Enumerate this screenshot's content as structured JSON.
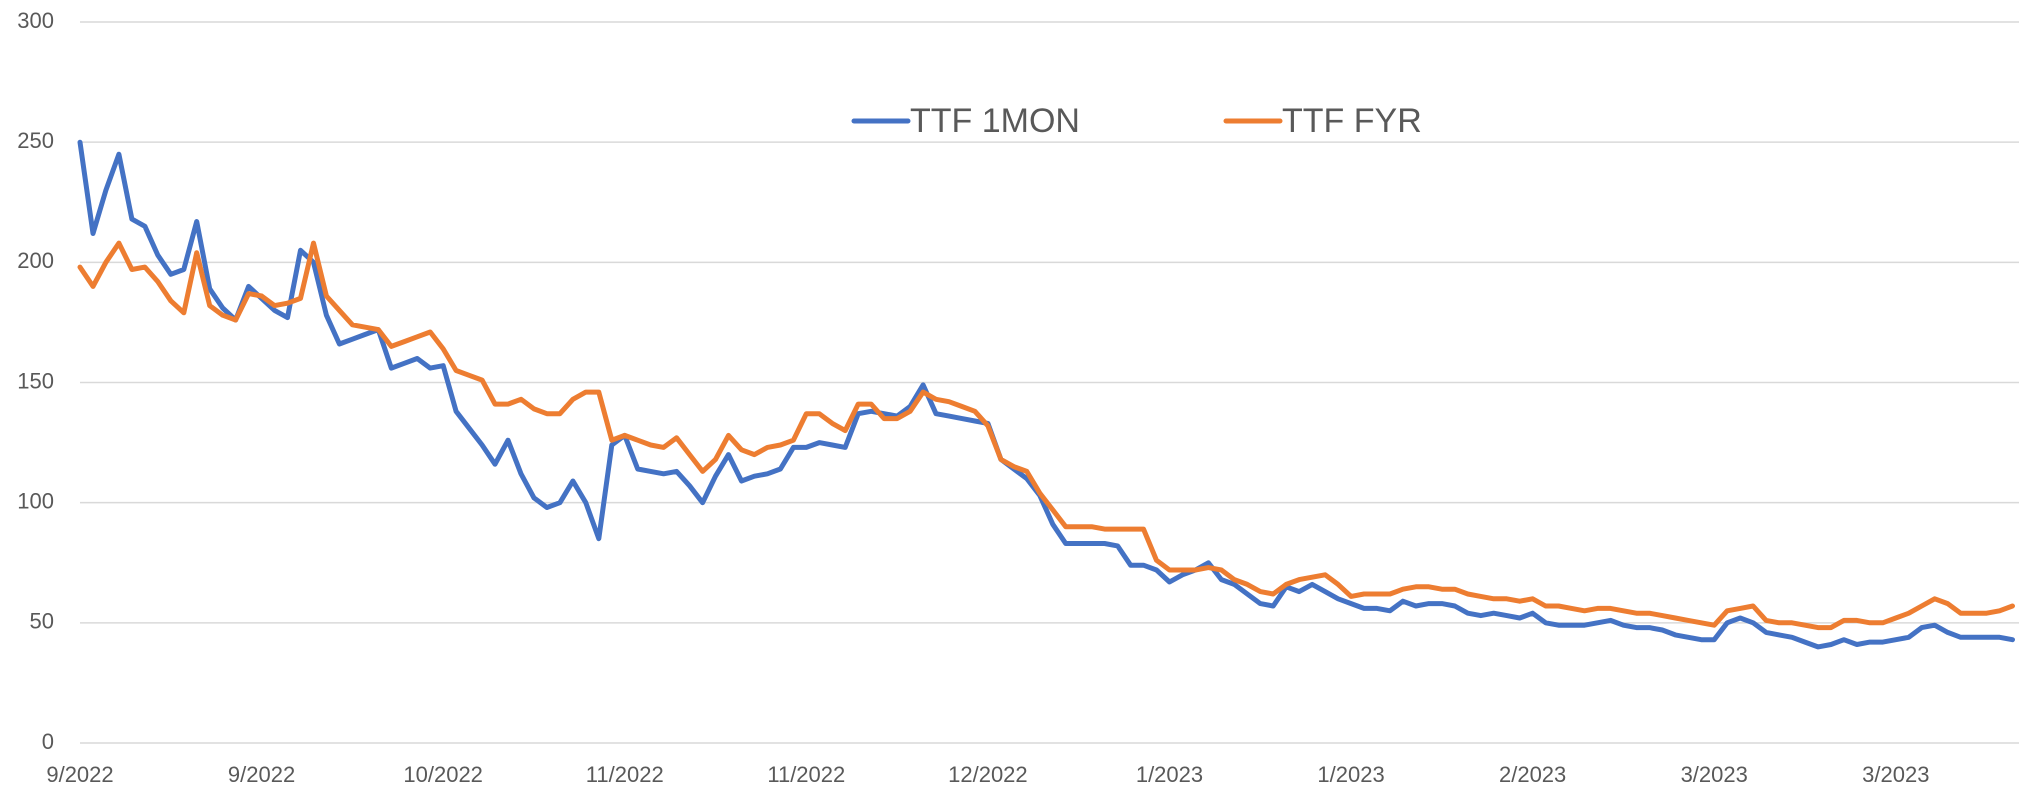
{
  "chart_data": {
    "type": "line",
    "categories": [
      "9/2022",
      null,
      null,
      null,
      null,
      null,
      null,
      null,
      null,
      null,
      null,
      null,
      null,
      null,
      "9/2022",
      null,
      null,
      null,
      null,
      null,
      null,
      null,
      null,
      null,
      null,
      null,
      null,
      null,
      "10/2022",
      null,
      null,
      null,
      null,
      null,
      null,
      null,
      null,
      null,
      null,
      null,
      null,
      null,
      "11/2022",
      null,
      null,
      null,
      null,
      null,
      null,
      null,
      null,
      null,
      null,
      null,
      null,
      null,
      "11/2022",
      null,
      null,
      null,
      null,
      null,
      null,
      null,
      null,
      null,
      null,
      null,
      null,
      null,
      "12/2022",
      null,
      null,
      null,
      null,
      null,
      null,
      null,
      null,
      null,
      null,
      null,
      null,
      null,
      "1/2023",
      null,
      null,
      null,
      null,
      null,
      null,
      null,
      null,
      null,
      null,
      null,
      null,
      null,
      "1/2023",
      null,
      null,
      null,
      null,
      null,
      null,
      null,
      null,
      null,
      null,
      null,
      null,
      null,
      "2/2023",
      null,
      null,
      null,
      null,
      null,
      null,
      null,
      null,
      null,
      null,
      null,
      null,
      null,
      "3/2023",
      null,
      null,
      null,
      null,
      null,
      null,
      null,
      null,
      null,
      null,
      null,
      null,
      null,
      "3/2023",
      null,
      null,
      null,
      null,
      null,
      null,
      null,
      null,
      null
    ],
    "series": [
      {
        "name": "TTF 1MON",
        "color": "#4472c4",
        "values": [
          250,
          212,
          230,
          245,
          218,
          215,
          203,
          195,
          197,
          217,
          189,
          181,
          176,
          190,
          185,
          180,
          177,
          205,
          200,
          178,
          166,
          168,
          170,
          172,
          156,
          158,
          160,
          156,
          157,
          138,
          131,
          124,
          116,
          126,
          112,
          102,
          98,
          100,
          109,
          100,
          85,
          124,
          128,
          114,
          113,
          112,
          113,
          107,
          100,
          111,
          120,
          109,
          111,
          112,
          114,
          123,
          123,
          125,
          124,
          123,
          137,
          138,
          137,
          136,
          140,
          149,
          137,
          136,
          135,
          134,
          133,
          118,
          114,
          110,
          103,
          91,
          83,
          83,
          83,
          83,
          82,
          74,
          74,
          72,
          67,
          70,
          72,
          75,
          68,
          66,
          62,
          58,
          57,
          65,
          63,
          66,
          63,
          60,
          58,
          56,
          56,
          55,
          59,
          57,
          58,
          58,
          57,
          54,
          53,
          54,
          53,
          52,
          54,
          50,
          49,
          49,
          49,
          50,
          51,
          49,
          48,
          48,
          47,
          45,
          44,
          43,
          43,
          50,
          52,
          50,
          46,
          45,
          44,
          42,
          40,
          41,
          43,
          41,
          42,
          42,
          43,
          44,
          48,
          49,
          46,
          44,
          44,
          44,
          44,
          43
        ]
      },
      {
        "name": "TTF FYR",
        "color": "#ed7d31",
        "values": [
          198,
          190,
          200,
          208,
          197,
          198,
          192,
          184,
          179,
          204,
          182,
          178,
          176,
          187,
          186,
          182,
          183,
          185,
          208,
          186,
          180,
          174,
          173,
          172,
          165,
          167,
          169,
          171,
          164,
          155,
          153,
          151,
          141,
          141,
          143,
          139,
          137,
          137,
          143,
          146,
          146,
          126,
          128,
          126,
          124,
          123,
          127,
          120,
          113,
          118,
          128,
          122,
          120,
          123,
          124,
          126,
          137,
          137,
          133,
          130,
          141,
          141,
          135,
          135,
          138,
          146,
          143,
          142,
          140,
          138,
          132,
          118,
          115,
          113,
          104,
          97,
          90,
          90,
          90,
          89,
          89,
          89,
          89,
          76,
          72,
          72,
          72,
          73,
          72,
          68,
          66,
          63,
          62,
          66,
          68,
          69,
          70,
          66,
          61,
          62,
          62,
          62,
          64,
          65,
          65,
          64,
          64,
          62,
          61,
          60,
          60,
          59,
          60,
          57,
          57,
          56,
          55,
          56,
          56,
          55,
          54,
          54,
          53,
          52,
          51,
          50,
          49,
          55,
          56,
          57,
          51,
          50,
          50,
          49,
          48,
          48,
          51,
          51,
          50,
          50,
          52,
          54,
          57,
          60,
          58,
          54,
          54,
          54,
          55,
          57
        ]
      }
    ],
    "ylim": [
      0,
      300
    ],
    "yticks": [
      0,
      50,
      100,
      150,
      200,
      250,
      300
    ],
    "grid": true,
    "legend": "top"
  }
}
